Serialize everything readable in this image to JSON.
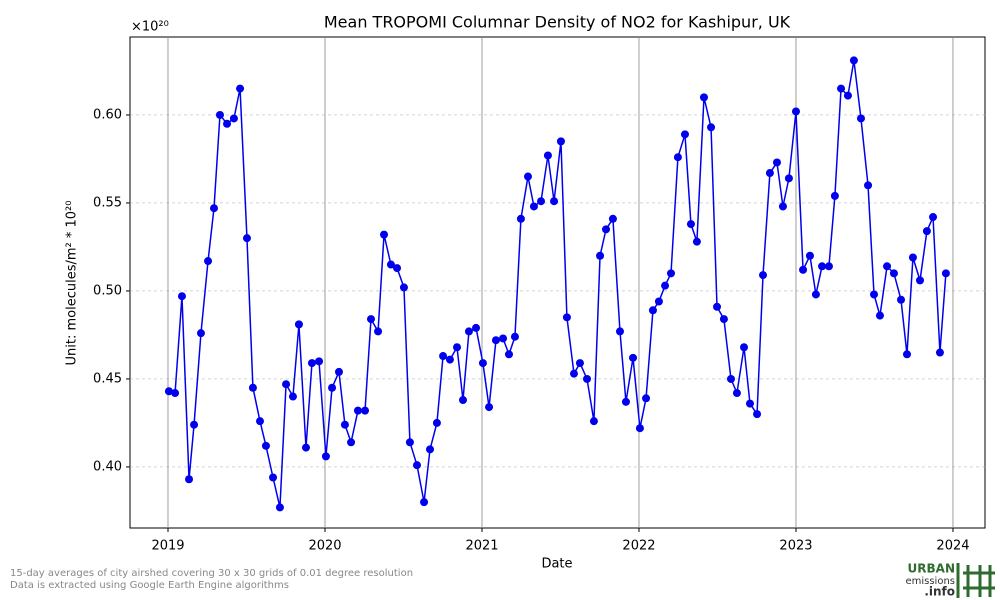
{
  "chart_data": {
    "type": "line",
    "title": "Mean TROPOMI Columnar Density of NO2 for Kashipur, UK",
    "x_label": "Date",
    "y_label": "Unit: molecules/m² * 10²⁰",
    "y_offset_label": "×10²⁰",
    "footnote": [
      "15-day averages of city airshed covering 30 x 30 grids of 0.01 degree resolution",
      "Data is extracted using Google Earth Engine algorithms"
    ],
    "logo": [
      "URBAN",
      "emissions",
      ".info"
    ],
    "grid": true,
    "xlim": [
      2018.758,
      2024.204
    ],
    "xticks": [
      2019,
      2020,
      2021,
      2022,
      2023,
      2024
    ],
    "ylim": [
      0.3653,
      0.6443
    ],
    "yticks": [
      {
        "value": 0.4,
        "label": "0.40"
      },
      {
        "value": 0.45,
        "label": "0.45"
      },
      {
        "value": 0.5,
        "label": "0.50"
      },
      {
        "value": 0.55,
        "label": "0.55"
      },
      {
        "value": 0.6,
        "label": "0.60"
      }
    ],
    "x": [
      2019.006,
      2019.045,
      2019.089,
      2019.134,
      2019.166,
      2019.21,
      2019.255,
      2019.293,
      2019.331,
      2019.376,
      2019.42,
      2019.459,
      2019.503,
      2019.541,
      2019.586,
      2019.624,
      2019.669,
      2019.713,
      2019.752,
      2019.796,
      2019.834,
      2019.879,
      2019.917,
      2019.962,
      2020.006,
      2020.045,
      2020.089,
      2020.127,
      2020.166,
      2020.21,
      2020.255,
      2020.293,
      2020.338,
      2020.376,
      2020.42,
      2020.459,
      2020.503,
      2020.541,
      2020.586,
      2020.631,
      2020.669,
      2020.713,
      2020.752,
      2020.796,
      2020.841,
      2020.879,
      2020.917,
      2020.962,
      2021.006,
      2021.045,
      2021.089,
      2021.134,
      2021.172,
      2021.21,
      2021.248,
      2021.293,
      2021.331,
      2021.376,
      2021.42,
      2021.459,
      2021.503,
      2021.541,
      2021.586,
      2021.624,
      2021.669,
      2021.713,
      2021.752,
      2021.79,
      2021.834,
      2021.879,
      2021.917,
      2021.962,
      2022.006,
      2022.045,
      2022.089,
      2022.127,
      2022.166,
      2022.204,
      2022.248,
      2022.293,
      2022.331,
      2022.369,
      2022.414,
      2022.459,
      2022.497,
      2022.541,
      2022.586,
      2022.624,
      2022.669,
      2022.707,
      2022.752,
      2022.79,
      2022.834,
      2022.879,
      2022.917,
      2022.955,
      2023.0,
      2023.045,
      2023.089,
      2023.127,
      2023.166,
      2023.21,
      2023.248,
      2023.287,
      2023.331,
      2023.369,
      2023.414,
      2023.459,
      2023.497,
      2023.535,
      2023.58,
      2023.624,
      2023.669,
      2023.707,
      2023.745,
      2023.79,
      2023.834,
      2023.873,
      2023.917,
      2023.955
    ],
    "series": [
      {
        "name": "NO2",
        "color": "#0000ee",
        "values": [
          0.443,
          0.442,
          0.497,
          0.393,
          0.424,
          0.476,
          0.517,
          0.547,
          0.6,
          0.595,
          0.598,
          0.615,
          0.53,
          0.445,
          0.426,
          0.412,
          0.394,
          0.377,
          0.447,
          0.44,
          0.481,
          0.411,
          0.459,
          0.46,
          0.406,
          0.445,
          0.454,
          0.424,
          0.414,
          0.432,
          0.432,
          0.484,
          0.477,
          0.532,
          0.515,
          0.513,
          0.502,
          0.414,
          0.401,
          0.38,
          0.41,
          0.425,
          0.463,
          0.461,
          0.468,
          0.438,
          0.477,
          0.479,
          0.459,
          0.434,
          0.472,
          0.473,
          0.464,
          0.474,
          0.541,
          0.565,
          0.548,
          0.551,
          0.577,
          0.551,
          0.585,
          0.485,
          0.453,
          0.459,
          0.45,
          0.426,
          0.52,
          0.535,
          0.541,
          0.477,
          0.437,
          0.462,
          0.422,
          0.439,
          0.489,
          0.494,
          0.503,
          0.51,
          0.576,
          0.589,
          0.538,
          0.528,
          0.61,
          0.593,
          0.491,
          0.484,
          0.45,
          0.442,
          0.468,
          0.436,
          0.43,
          0.509,
          0.567,
          0.573,
          0.548,
          0.564,
          0.602,
          0.512,
          0.52,
          0.498,
          0.514,
          0.514,
          0.554,
          0.615,
          0.611,
          0.631,
          0.598,
          0.56,
          0.498,
          0.486,
          0.514,
          0.51,
          0.495,
          0.464,
          0.519,
          0.506,
          0.534,
          0.542,
          0.465,
          0.51
        ]
      }
    ]
  }
}
